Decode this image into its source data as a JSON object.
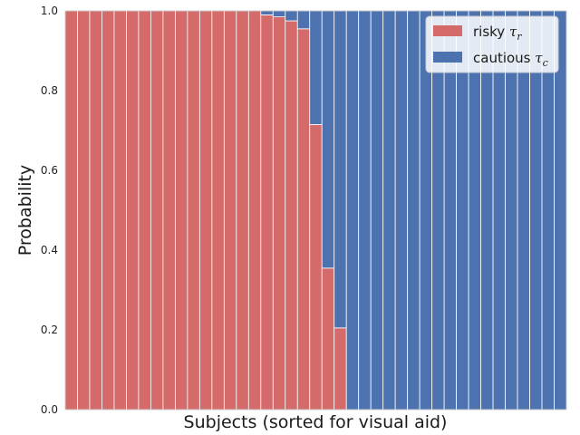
{
  "chart_data": {
    "type": "bar",
    "stacked": true,
    "xlabel": "Subjects (sorted for visual aid)",
    "ylabel": "Probability",
    "ylim": [
      0,
      1
    ],
    "yticks": [
      "0.0",
      "0.2",
      "0.4",
      "0.6",
      "0.8",
      "1.0"
    ],
    "x_tick_labels": false,
    "grid": true,
    "legend_position": "top-right",
    "series": [
      {
        "name": "risky",
        "name_symbol": "τ",
        "name_sub": "r",
        "color": "#d46a6a",
        "values": [
          1,
          1,
          1,
          1,
          1,
          1,
          1,
          1,
          1,
          1,
          1,
          1,
          1,
          1,
          1,
          1,
          0.99,
          0.985,
          0.975,
          0.955,
          0.715,
          0.355,
          0.205,
          0,
          0,
          0,
          0,
          0,
          0,
          0,
          0,
          0,
          0,
          0,
          0,
          0,
          0,
          0,
          0,
          0,
          0
        ]
      },
      {
        "name": "cautious",
        "name_symbol": "τ",
        "name_sub": "c",
        "color": "#4c72b0",
        "values": [
          0,
          0,
          0,
          0,
          0,
          0,
          0,
          0,
          0,
          0,
          0,
          0,
          0,
          0,
          0,
          0,
          0.01,
          0.015,
          0.025,
          0.045,
          0.285,
          0.645,
          0.795,
          1,
          1,
          1,
          1,
          1,
          1,
          1,
          1,
          1,
          1,
          1,
          1,
          1,
          1,
          1,
          1,
          1,
          1
        ]
      }
    ]
  }
}
